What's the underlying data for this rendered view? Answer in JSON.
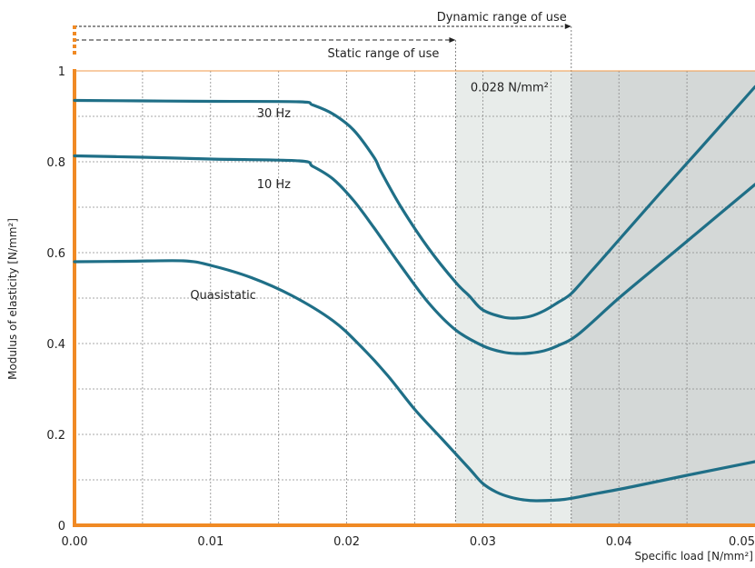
{
  "chart_data": {
    "type": "line",
    "xlabel": "Specific load [N/mm²]",
    "ylabel": "Modulus of elasticity [N/mm²]",
    "xlim": [
      0,
      0.05
    ],
    "ylim": [
      0,
      1
    ],
    "x_ticks": [
      {
        "value": 0.0,
        "label": "0.00"
      },
      {
        "value": 0.01,
        "label": "0.01"
      },
      {
        "value": 0.02,
        "label": "0.02"
      },
      {
        "value": 0.03,
        "label": "0.03"
      },
      {
        "value": 0.04,
        "label": "0.04"
      },
      {
        "value": 0.05,
        "label": "0.05"
      }
    ],
    "y_ticks": [
      {
        "value": 0,
        "label": "0"
      },
      {
        "value": 0.2,
        "label": "0.2"
      },
      {
        "value": 0.4,
        "label": "0.4"
      },
      {
        "value": 0.6,
        "label": "0.6"
      },
      {
        "value": 0.8,
        "label": "0.8"
      },
      {
        "value": 1,
        "label": "1"
      }
    ],
    "grid": true,
    "regions": [
      {
        "x_start": 0.028,
        "x_end": 0.0365,
        "color": "#e8ecea"
      },
      {
        "x_start": 0.0365,
        "x_end": 0.05,
        "color": "#d4d8d7"
      }
    ],
    "ranges": [
      {
        "label": "Dynamic range of use",
        "x_start": 0,
        "x_end": 0.0365
      },
      {
        "label": "Static range of use",
        "x_start": 0,
        "x_end": 0.028
      }
    ],
    "annotations": [
      {
        "text": "0.028 N/mm²",
        "x": 0.0291,
        "y": 0.955
      }
    ],
    "series": [
      {
        "name": "30 Hz",
        "label_pos": {
          "x": 0.0134,
          "y": 0.898
        },
        "x": [
          0,
          0.005,
          0.01,
          0.0165,
          0.0175,
          0.019,
          0.0205,
          0.022,
          0.0225,
          0.024,
          0.026,
          0.028,
          0.029,
          0.03,
          0.0315,
          0.0325,
          0.0335,
          0.0345,
          0.0355,
          0.0365,
          0.038,
          0.04,
          0.043,
          0.046,
          0.05
        ],
        "values": [
          0.935,
          0.934,
          0.933,
          0.932,
          0.925,
          0.905,
          0.87,
          0.81,
          0.78,
          0.7,
          0.61,
          0.535,
          0.505,
          0.474,
          0.458,
          0.456,
          0.46,
          0.472,
          0.49,
          0.51,
          0.56,
          0.628,
          0.73,
          0.83,
          0.965
        ]
      },
      {
        "name": "10 Hz",
        "label_pos": {
          "x": 0.0134,
          "y": 0.742
        },
        "x": [
          0,
          0.005,
          0.01,
          0.0165,
          0.0175,
          0.019,
          0.0205,
          0.022,
          0.024,
          0.026,
          0.028,
          0.03,
          0.0315,
          0.0325,
          0.0335,
          0.0345,
          0.0355,
          0.037,
          0.04,
          0.043,
          0.046,
          0.05
        ],
        "values": [
          0.813,
          0.81,
          0.806,
          0.802,
          0.79,
          0.762,
          0.715,
          0.655,
          0.57,
          0.49,
          0.43,
          0.395,
          0.381,
          0.378,
          0.379,
          0.384,
          0.395,
          0.42,
          0.5,
          0.575,
          0.65,
          0.75
        ]
      },
      {
        "name": "Quasistatic",
        "label_pos": {
          "x": 0.0085,
          "y": 0.498
        },
        "x": [
          0,
          0.004,
          0.008,
          0.01,
          0.013,
          0.016,
          0.019,
          0.021,
          0.023,
          0.025,
          0.027,
          0.029,
          0.03,
          0.031,
          0.032,
          0.033,
          0.034,
          0.036,
          0.038,
          0.041,
          0.045,
          0.05
        ],
        "values": [
          0.58,
          0.581,
          0.582,
          0.572,
          0.545,
          0.505,
          0.45,
          0.395,
          0.33,
          0.255,
          0.19,
          0.125,
          0.092,
          0.073,
          0.062,
          0.056,
          0.054,
          0.057,
          0.068,
          0.085,
          0.11,
          0.14
        ]
      }
    ]
  }
}
